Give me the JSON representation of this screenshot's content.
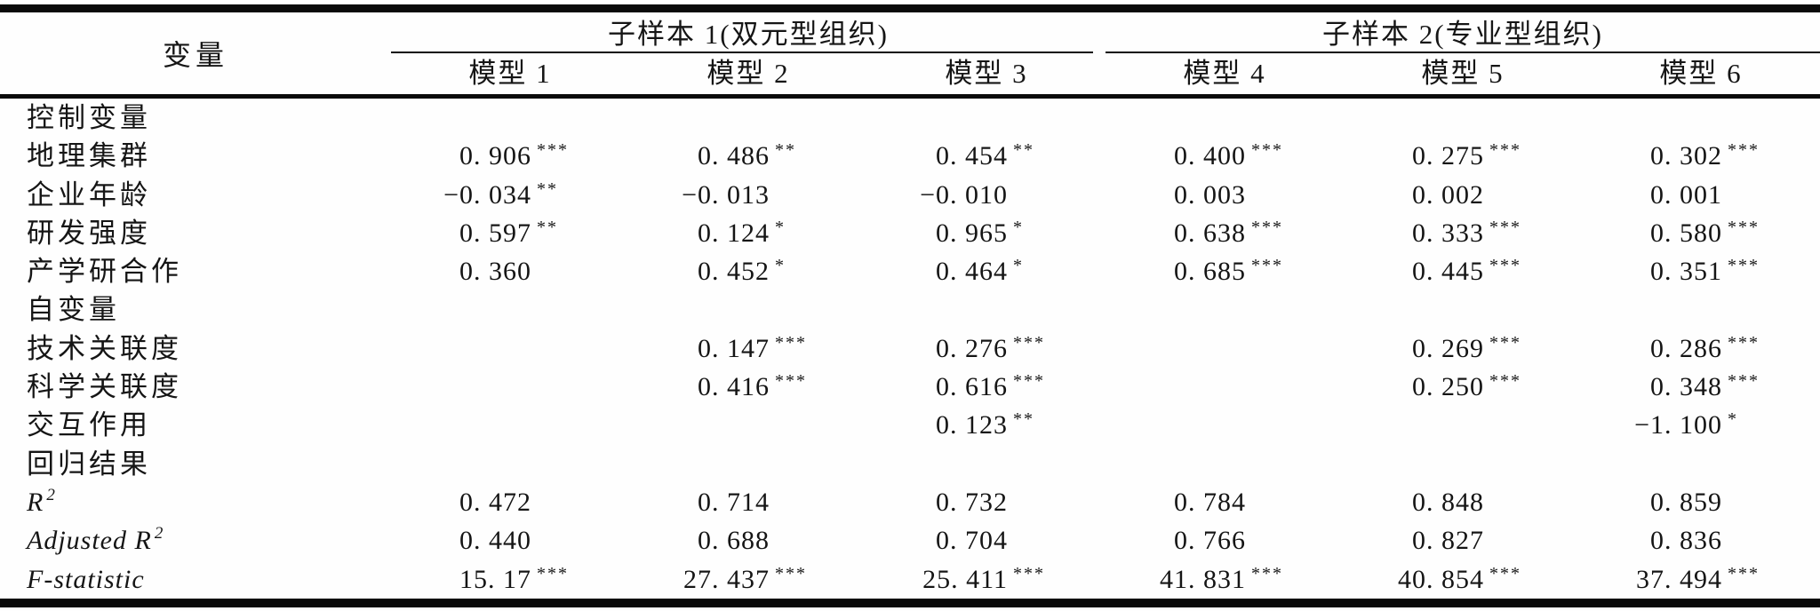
{
  "table": {
    "variable_header": "变量",
    "groups": [
      {
        "label": "子样本 1(双元型组织)",
        "models": [
          "模型 1",
          "模型 2",
          "模型 3"
        ]
      },
      {
        "label": "子样本 2(专业型组织)",
        "models": [
          "模型 4",
          "模型 5",
          "模型 6"
        ]
      }
    ],
    "rows": [
      {
        "label": "控制变量",
        "section": true,
        "cells": [
          null,
          null,
          null,
          null,
          null,
          null
        ]
      },
      {
        "label": "地理集群",
        "cells": [
          {
            "val": "0. 906",
            "sup": "***"
          },
          {
            "val": "0. 486",
            "sup": "**"
          },
          {
            "val": "0. 454",
            "sup": "**"
          },
          {
            "val": "0. 400",
            "sup": "***"
          },
          {
            "val": "0. 275",
            "sup": "***"
          },
          {
            "val": "0. 302",
            "sup": "***"
          }
        ]
      },
      {
        "label": "企业年龄",
        "cells": [
          {
            "val": "−0. 034",
            "sup": "**"
          },
          {
            "val": "−0. 013"
          },
          {
            "val": "−0. 010"
          },
          {
            "val": "0. 003"
          },
          {
            "val": "0. 002"
          },
          {
            "val": "0. 001"
          }
        ]
      },
      {
        "label": "研发强度",
        "cells": [
          {
            "val": "0. 597",
            "sup": "**"
          },
          {
            "val": "0. 124",
            "sup": "*"
          },
          {
            "val": "0. 965",
            "sup": "*"
          },
          {
            "val": "0. 638",
            "sup": "***"
          },
          {
            "val": "0. 333",
            "sup": "***"
          },
          {
            "val": "0. 580",
            "sup": "***"
          }
        ]
      },
      {
        "label": "产学研合作",
        "cells": [
          {
            "val": "0. 360"
          },
          {
            "val": "0. 452",
            "sup": "*"
          },
          {
            "val": "0. 464",
            "sup": "*"
          },
          {
            "val": "0. 685",
            "sup": "***"
          },
          {
            "val": "0. 445",
            "sup": "***"
          },
          {
            "val": "0. 351",
            "sup": "***"
          }
        ]
      },
      {
        "label": "自变量",
        "section": true,
        "cells": [
          null,
          null,
          null,
          null,
          null,
          null
        ]
      },
      {
        "label": "技术关联度",
        "cells": [
          null,
          {
            "val": "0. 147",
            "sup": "***"
          },
          {
            "val": "0. 276",
            "sup": "***"
          },
          null,
          {
            "val": "0. 269",
            "sup": "***"
          },
          {
            "val": "0. 286",
            "sup": "***"
          }
        ]
      },
      {
        "label": "科学关联度",
        "cells": [
          null,
          {
            "val": "0. 416",
            "sup": "***"
          },
          {
            "val": "0. 616",
            "sup": "***"
          },
          null,
          {
            "val": "0. 250",
            "sup": "***"
          },
          {
            "val": "0. 348",
            "sup": "***"
          }
        ]
      },
      {
        "label": "交互作用",
        "cells": [
          null,
          null,
          {
            "val": "0. 123",
            "sup": "**"
          },
          null,
          null,
          {
            "val": "−1. 100",
            "sup": "*"
          }
        ]
      },
      {
        "label": "回归结果",
        "section": true,
        "cells": [
          null,
          null,
          null,
          null,
          null,
          null
        ]
      },
      {
        "label": "R",
        "label_sup": "2",
        "italic": true,
        "cells": [
          {
            "val": "0. 472"
          },
          {
            "val": "0. 714"
          },
          {
            "val": "0. 732"
          },
          {
            "val": "0. 784"
          },
          {
            "val": "0. 848"
          },
          {
            "val": "0. 859"
          }
        ]
      },
      {
        "label": "Adjusted R",
        "label_sup": "2",
        "italic": true,
        "cells": [
          {
            "val": "0. 440"
          },
          {
            "val": "0. 688"
          },
          {
            "val": "0. 704"
          },
          {
            "val": "0. 766"
          },
          {
            "val": "0. 827"
          },
          {
            "val": "0. 836"
          }
        ]
      },
      {
        "label": "F-statistic",
        "italic": true,
        "cells": [
          {
            "val": "15. 17",
            "sup": "***"
          },
          {
            "val": "27. 437",
            "sup": "***"
          },
          {
            "val": "25. 411",
            "sup": "***"
          },
          {
            "val": "41. 831",
            "sup": "***"
          },
          {
            "val": "40. 854",
            "sup": "***"
          },
          {
            "val": "37. 494",
            "sup": "***"
          }
        ]
      }
    ]
  }
}
